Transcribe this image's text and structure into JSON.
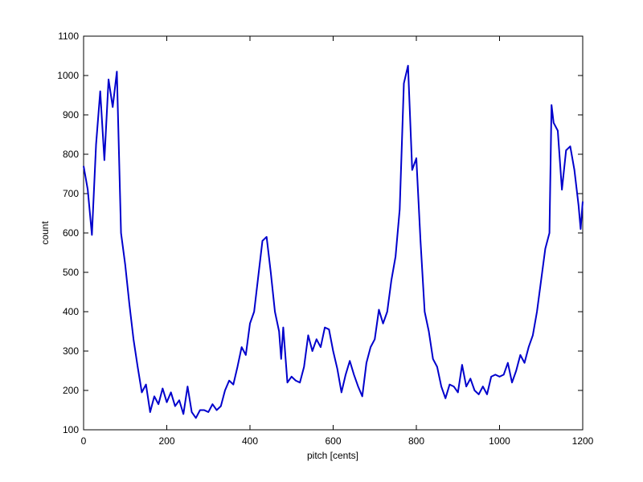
{
  "chart_data": {
    "type": "line",
    "xlabel": "pitch [cents]",
    "ylabel": "count",
    "x": [
      0,
      10,
      20,
      30,
      40,
      50,
      60,
      70,
      80,
      90,
      100,
      110,
      120,
      130,
      140,
      150,
      160,
      170,
      180,
      190,
      200,
      210,
      220,
      230,
      240,
      250,
      260,
      270,
      280,
      290,
      300,
      310,
      320,
      330,
      340,
      350,
      360,
      370,
      380,
      390,
      400,
      410,
      420,
      430,
      440,
      450,
      460,
      470,
      475,
      480,
      490,
      500,
      510,
      520,
      530,
      540,
      550,
      560,
      570,
      580,
      590,
      600,
      610,
      620,
      630,
      640,
      650,
      660,
      670,
      680,
      690,
      700,
      710,
      720,
      730,
      740,
      750,
      760,
      770,
      780,
      790,
      800,
      810,
      820,
      830,
      840,
      850,
      860,
      870,
      880,
      890,
      900,
      910,
      920,
      930,
      940,
      950,
      960,
      970,
      980,
      990,
      1000,
      1010,
      1020,
      1030,
      1040,
      1050,
      1060,
      1070,
      1080,
      1090,
      1100,
      1110,
      1120,
      1125,
      1130,
      1140,
      1150,
      1160,
      1170,
      1180,
      1190,
      1195,
      1200
    ],
    "series": [
      {
        "name": "count",
        "color": "#0000cc",
        "values": [
          770,
          710,
          595,
          825,
          960,
          785,
          990,
          920,
          1010,
          600,
          520,
          420,
          330,
          260,
          195,
          215,
          145,
          185,
          165,
          205,
          170,
          195,
          160,
          175,
          140,
          210,
          145,
          130,
          150,
          150,
          145,
          165,
          150,
          160,
          200,
          225,
          215,
          260,
          310,
          290,
          370,
          400,
          490,
          580,
          590,
          500,
          400,
          350,
          280,
          360,
          220,
          235,
          225,
          220,
          260,
          340,
          300,
          330,
          310,
          360,
          355,
          300,
          255,
          195,
          240,
          275,
          240,
          210,
          185,
          270,
          310,
          330,
          405,
          370,
          400,
          480,
          540,
          660,
          980,
          1025,
          760,
          790,
          580,
          400,
          350,
          280,
          260,
          210,
          180,
          215,
          210,
          195,
          265,
          210,
          230,
          200,
          190,
          210,
          190,
          235,
          240,
          235,
          240,
          270,
          220,
          250,
          290,
          270,
          310,
          340,
          400,
          480,
          560,
          600,
          925,
          880,
          860,
          710,
          810,
          820,
          760,
          670,
          610,
          680
        ]
      }
    ],
    "xlim": [
      0,
      1200
    ],
    "xticks": [
      0,
      200,
      400,
      600,
      800,
      1000,
      1200
    ],
    "ylim": [
      100,
      1100
    ],
    "yticks": [
      100,
      200,
      300,
      400,
      500,
      600,
      700,
      800,
      900,
      1000,
      1100
    ]
  }
}
